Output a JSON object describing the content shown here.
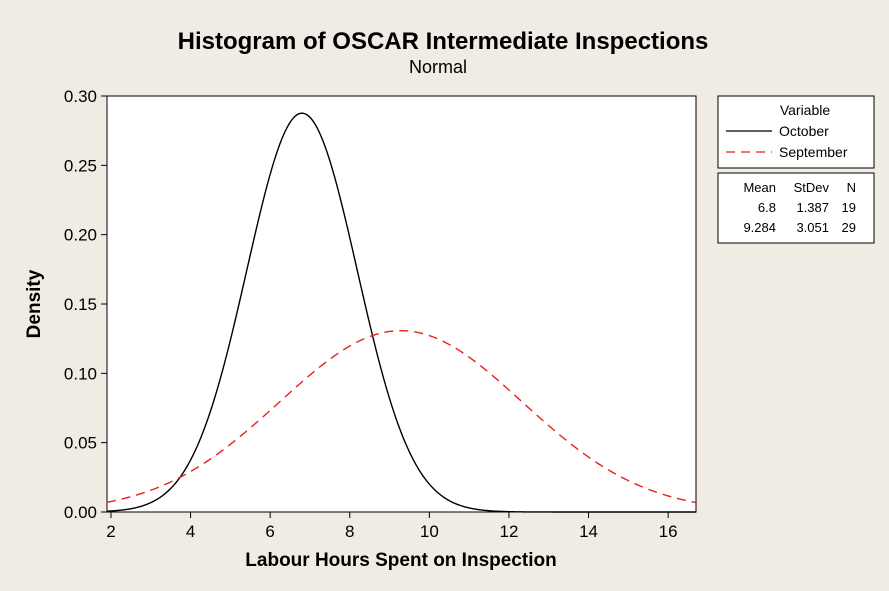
{
  "chart_data": {
    "type": "line",
    "title": "Histogram of OSCAR Intermediate Inspections",
    "subtitle": "Normal",
    "xlabel": "Labour Hours Spent on Inspection",
    "ylabel": "Density",
    "xlim": [
      1.9,
      16.7
    ],
    "ylim": [
      0,
      0.3
    ],
    "xticks": [
      "2",
      "4",
      "6",
      "8",
      "10",
      "12",
      "14",
      "16"
    ],
    "yticks": [
      "0.00",
      "0.05",
      "0.10",
      "0.15",
      "0.20",
      "0.25",
      "0.30"
    ],
    "series": [
      {
        "name": "October",
        "distribution": "normal",
        "mean": 6.8,
        "stdev": 1.387,
        "n": 19,
        "color": "#000000",
        "dash": "solid"
      },
      {
        "name": "September",
        "distribution": "normal",
        "mean": 9.284,
        "stdev": 3.051,
        "n": 29,
        "color": "#e8201c",
        "dash": "dashed"
      }
    ],
    "legend": {
      "title": "Variable",
      "placement": "right",
      "stats_headers": [
        "Mean",
        "StDev",
        "N"
      ],
      "stats_rows": [
        [
          "6.8",
          "1.387",
          "19"
        ],
        [
          "9.284",
          "3.051",
          "29"
        ]
      ]
    },
    "grid": false
  }
}
